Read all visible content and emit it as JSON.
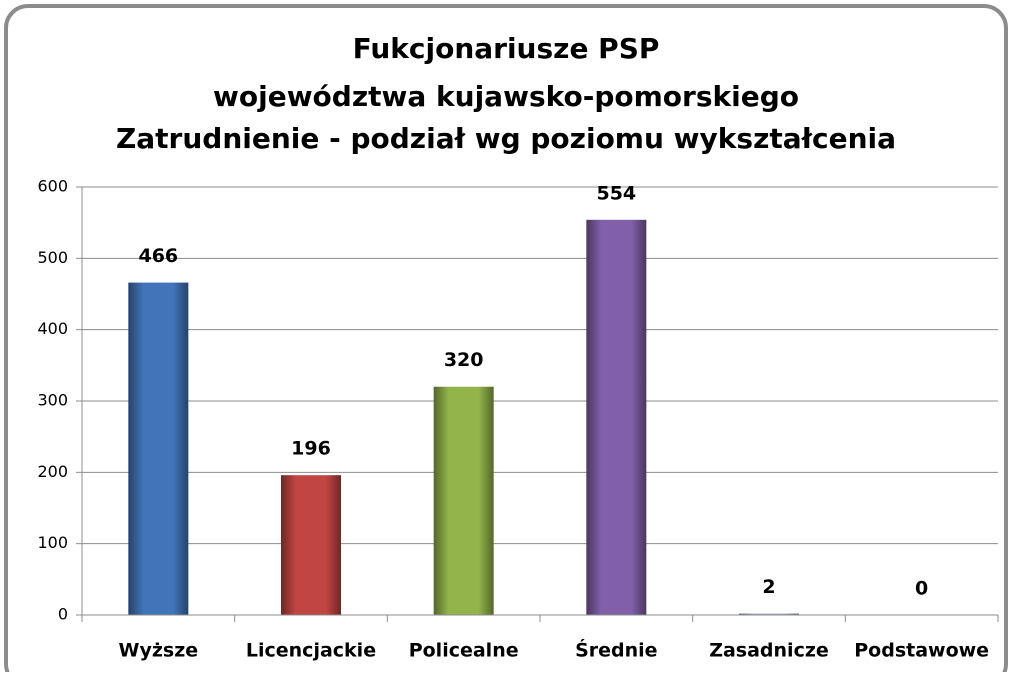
{
  "chart_data": {
    "type": "bar",
    "title": [
      "Fukcjonariusze PSP",
      "województwa kujawsko-pomorskiego",
      "Zatrudnienie - podział wg poziomu wykształcenia"
    ],
    "categories": [
      "Wyższe",
      "Licencjackie",
      "Policealne",
      "Średnie",
      "Zasadnicze",
      "Podstawowe"
    ],
    "values": [
      466,
      196,
      320,
      554,
      2,
      0
    ],
    "colors": [
      "#3d6fb0",
      "#b8423f",
      "#8bab47",
      "#7b5ba1",
      "#8fa3b8",
      "#f79646"
    ],
    "ylim": [
      0,
      600
    ],
    "yticks": [
      0,
      100,
      200,
      300,
      400,
      500,
      600
    ],
    "grid": true
  }
}
